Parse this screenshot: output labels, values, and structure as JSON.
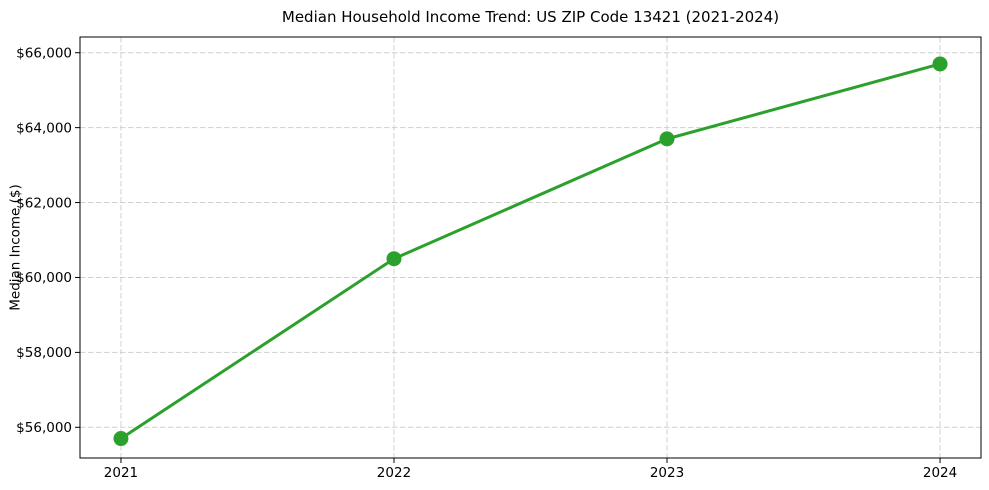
{
  "chart_data": {
    "type": "line",
    "title": "Median Household Income Trend: US ZIP Code 13421 (2021-2024)",
    "xlabel": "",
    "ylabel": "Median Income ($)",
    "x": [
      2021,
      2022,
      2023,
      2024
    ],
    "values": [
      55700,
      60500,
      63700,
      65700
    ],
    "x_tick_labels": [
      "2021",
      "2022",
      "2023",
      "2024"
    ],
    "y_ticks": [
      56000,
      58000,
      60000,
      62000,
      64000,
      66000
    ],
    "y_tick_labels": [
      "$56,000",
      "$58,000",
      "$60,000",
      "$62,000",
      "$64,000",
      "$66,000"
    ],
    "xlim": [
      2020.85,
      2024.15
    ],
    "ylim": [
      55180,
      66420
    ],
    "grid": true,
    "grid_line_style": "dashed",
    "legend_position": "none",
    "colors": {
      "line": "#2ca02c",
      "marker": "#2ca02c",
      "grid": "#cccccc",
      "axes": "#000000",
      "text": "#000000",
      "background": "#ffffff"
    }
  }
}
